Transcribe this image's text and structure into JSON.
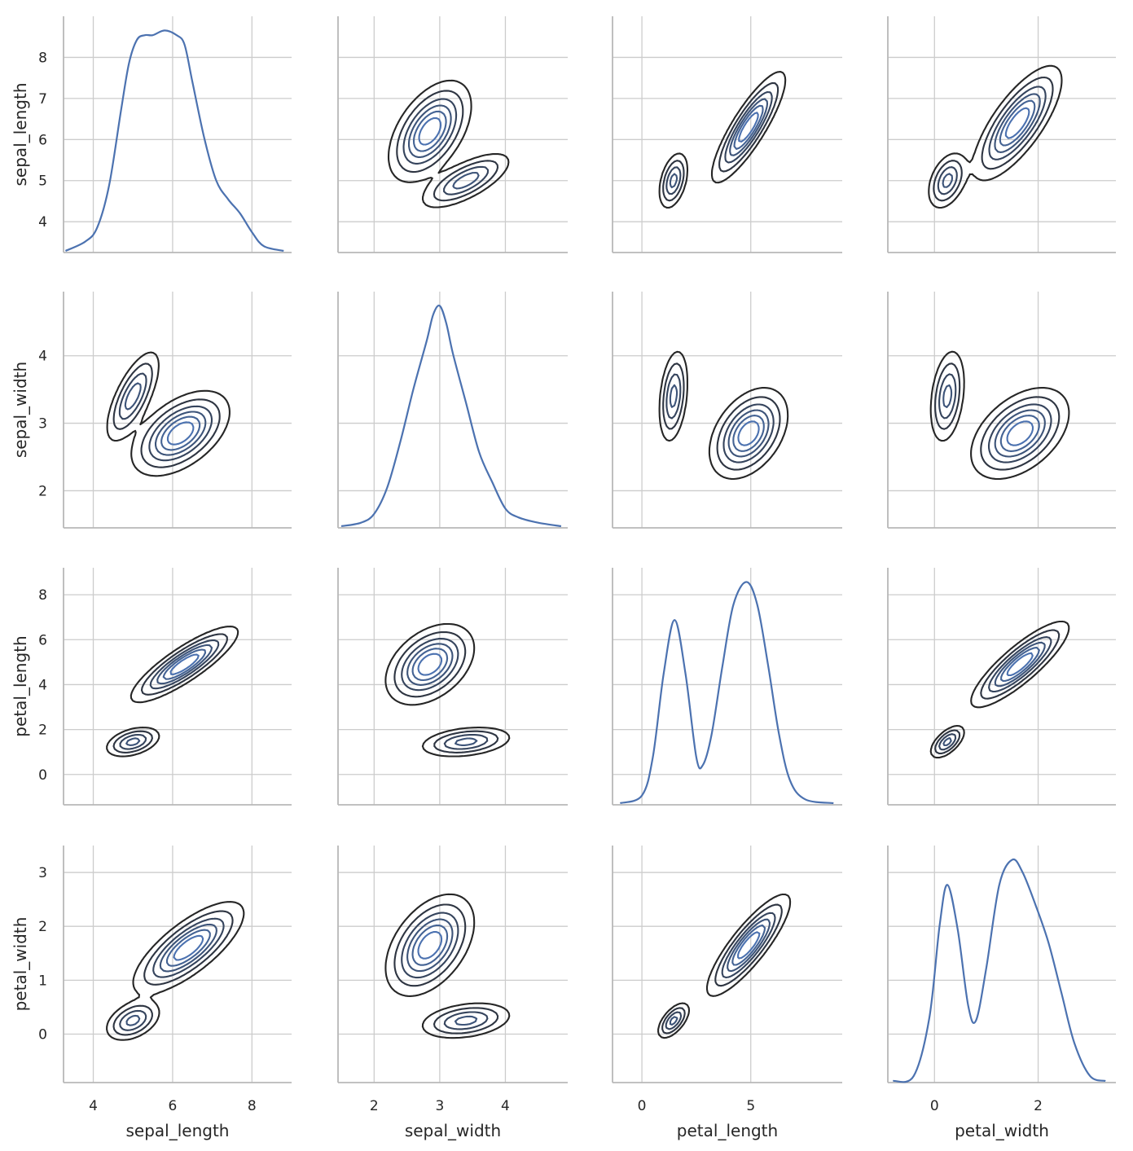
{
  "chart_data": {
    "type": "pairplot",
    "description_kind": "kde pair grid (iris)",
    "variables": [
      "sepal_length",
      "sepal_width",
      "petal_length",
      "petal_width"
    ],
    "axes": {
      "sepal_length": {
        "label": "sepal_length",
        "lim": [
          3.25,
          9.0
        ],
        "ticks": [
          4,
          5,
          6,
          7,
          8
        ],
        "x_ticks": [
          4,
          6,
          8
        ]
      },
      "sepal_width": {
        "label": "sepal_width",
        "lim": [
          1.45,
          4.95
        ],
        "ticks": [
          2,
          3,
          4
        ],
        "x_ticks": [
          2,
          3,
          4
        ]
      },
      "petal_length": {
        "label": "petal_length",
        "lim": [
          -1.35,
          9.2
        ],
        "ticks": [
          0,
          2,
          4,
          6,
          8
        ],
        "x_ticks": [
          0,
          5
        ]
      },
      "petal_width": {
        "label": "petal_width",
        "lim": [
          -0.9,
          3.5
        ],
        "ticks": [
          0,
          1,
          2,
          3
        ],
        "x_ticks": [
          0,
          2
        ]
      }
    },
    "diagonal_kde": {
      "sepal_length": {
        "x": [
          3.3,
          3.8,
          4.1,
          4.4,
          4.7,
          4.9,
          5.1,
          5.3,
          5.5,
          5.8,
          6.1,
          6.3,
          6.5,
          6.8,
          7.1,
          7.4,
          7.7,
          8.0,
          8.3,
          8.8
        ],
        "density": [
          0.0,
          0.02,
          0.05,
          0.14,
          0.3,
          0.4,
          0.45,
          0.46,
          0.46,
          0.47,
          0.46,
          0.44,
          0.36,
          0.24,
          0.15,
          0.11,
          0.08,
          0.04,
          0.01,
          0.0
        ]
      },
      "sepal_width": {
        "x": [
          1.5,
          1.8,
          2.0,
          2.2,
          2.4,
          2.6,
          2.8,
          2.9,
          3.0,
          3.1,
          3.2,
          3.4,
          3.6,
          3.8,
          4.0,
          4.2,
          4.5,
          4.85
        ],
        "density": [
          0.0,
          0.02,
          0.07,
          0.22,
          0.48,
          0.78,
          1.05,
          1.2,
          1.25,
          1.15,
          0.98,
          0.7,
          0.42,
          0.25,
          0.1,
          0.05,
          0.02,
          0.0
        ]
      },
      "petal_length": {
        "x": [
          -1.0,
          0.0,
          0.5,
          1.0,
          1.5,
          2.0,
          2.5,
          2.8,
          3.2,
          3.7,
          4.2,
          4.8,
          5.3,
          5.8,
          6.3,
          6.8,
          7.5,
          8.8
        ],
        "density": [
          0.0,
          0.01,
          0.06,
          0.17,
          0.24,
          0.17,
          0.06,
          0.05,
          0.09,
          0.18,
          0.26,
          0.29,
          0.26,
          0.18,
          0.09,
          0.03,
          0.005,
          0.0
        ]
      },
      "petal_width": {
        "x": [
          -0.8,
          -0.4,
          -0.1,
          0.1,
          0.25,
          0.45,
          0.65,
          0.8,
          1.0,
          1.25,
          1.5,
          1.7,
          1.95,
          2.2,
          2.45,
          2.7,
          3.0,
          3.3
        ],
        "density": [
          0.0,
          0.02,
          0.25,
          0.62,
          0.78,
          0.6,
          0.3,
          0.24,
          0.45,
          0.78,
          0.88,
          0.83,
          0.7,
          0.55,
          0.35,
          0.15,
          0.02,
          0.0
        ]
      }
    },
    "contour_levels": 6,
    "offdiagonal_kde": {
      "sepal_length|sepal_width": [
        {
          "x": 5.0,
          "y": 3.4,
          "sx": 0.32,
          "sy": 0.32,
          "rho": 0.7,
          "w": 1.0
        },
        {
          "x": 6.2,
          "y": 2.85,
          "sx": 0.55,
          "sy": 0.28,
          "rho": 0.5,
          "w": 1.6
        }
      ],
      "sepal_length|petal_length": [
        {
          "x": 5.0,
          "y": 1.45,
          "sx": 0.33,
          "sy": 0.32,
          "rho": 0.4,
          "w": 1.0
        },
        {
          "x": 6.3,
          "y": 4.9,
          "sx": 0.6,
          "sy": 0.75,
          "rho": 0.85,
          "w": 1.7
        }
      ],
      "sepal_length|petal_width": [
        {
          "x": 5.0,
          "y": 0.25,
          "sx": 0.33,
          "sy": 0.18,
          "rho": 0.4,
          "w": 1.0
        },
        {
          "x": 6.4,
          "y": 1.6,
          "sx": 0.62,
          "sy": 0.38,
          "rho": 0.75,
          "w": 1.7
        }
      ],
      "sepal_width|petal_length": [
        {
          "x": 3.4,
          "y": 1.45,
          "sx": 0.33,
          "sy": 0.32,
          "rho": 0.3,
          "w": 1.0
        },
        {
          "x": 2.85,
          "y": 4.9,
          "sx": 0.3,
          "sy": 0.8,
          "rho": 0.4,
          "w": 1.7
        }
      ],
      "sepal_width|petal_width": [
        {
          "x": 3.4,
          "y": 0.25,
          "sx": 0.33,
          "sy": 0.16,
          "rho": 0.3,
          "w": 1.0
        },
        {
          "x": 2.85,
          "y": 1.65,
          "sx": 0.3,
          "sy": 0.42,
          "rho": 0.45,
          "w": 1.7
        }
      ],
      "petal_length|petal_width": [
        {
          "x": 1.45,
          "y": 0.25,
          "sx": 0.35,
          "sy": 0.16,
          "rho": 0.6,
          "w": 1.0
        },
        {
          "x": 4.9,
          "y": 1.65,
          "sx": 0.85,
          "sy": 0.42,
          "rho": 0.85,
          "w": 1.7
        }
      ]
    },
    "style": {
      "kde_line_color": "#4c72b0",
      "contour_dark": "#262626",
      "contour_light": "#4c72b0",
      "grid_color": "#cccccc",
      "spine_color": "#b8b8b8",
      "background": "#ffffff"
    },
    "grid": true,
    "layout": "4x4"
  }
}
